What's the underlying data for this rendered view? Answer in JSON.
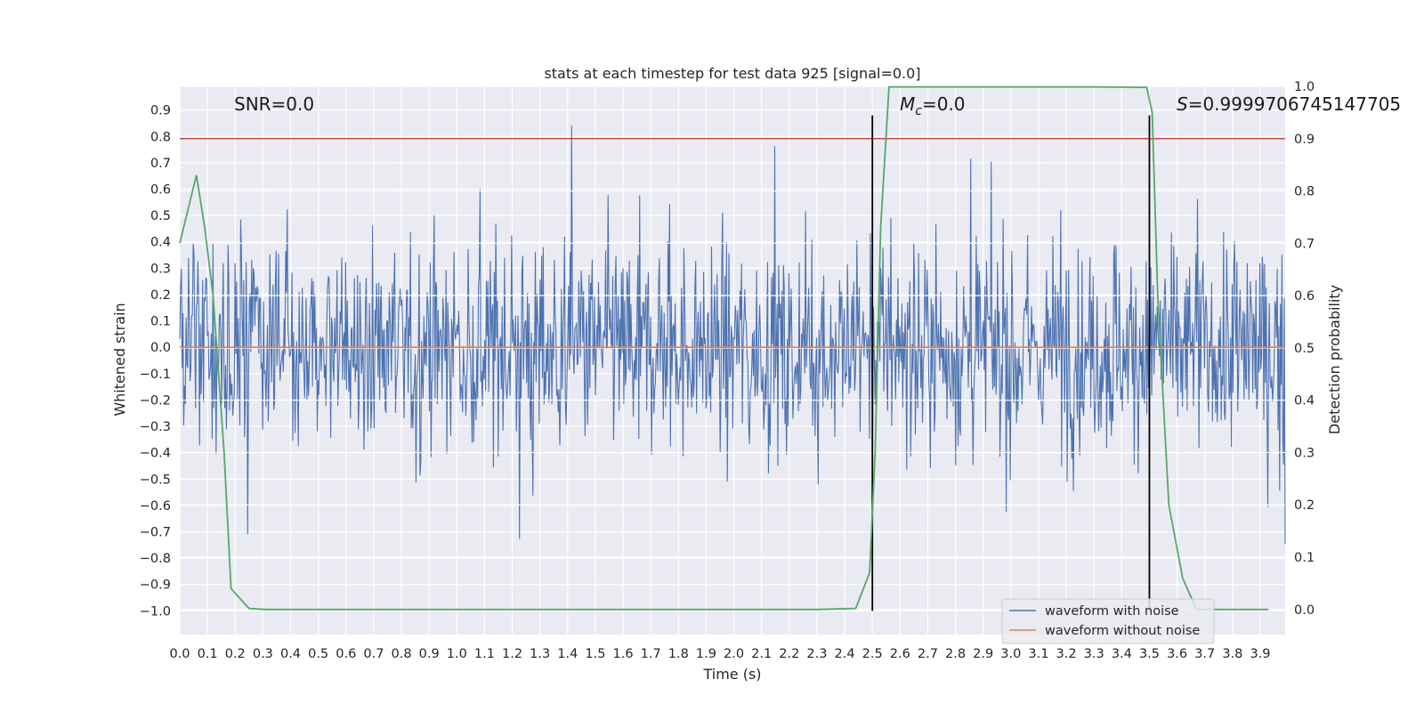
{
  "chart_data": {
    "type": "line",
    "title": "stats at each timestep for test data 925 [signal=0.0]",
    "xlabel": "Time (s)",
    "ylabel": "Whitened strain",
    "y2label": "Detection probability",
    "xlim": [
      0.0,
      3.99
    ],
    "ylim": [
      -1.09,
      0.99
    ],
    "y2lim": [
      -0.048,
      1.0
    ],
    "xticks": [
      0.0,
      0.1,
      0.2,
      0.3,
      0.4,
      0.5,
      0.6,
      0.7,
      0.8,
      0.9,
      1.0,
      1.1,
      1.2,
      1.3,
      1.4,
      1.5,
      1.6,
      1.7,
      1.8,
      1.9,
      2.0,
      2.1,
      2.2,
      2.3,
      2.4,
      2.5,
      2.6,
      2.7,
      2.8,
      2.9,
      3.0,
      3.1,
      3.2,
      3.3,
      3.4,
      3.5,
      3.6,
      3.7,
      3.8,
      3.9
    ],
    "xtick_labels": [
      "0.0",
      "0.1",
      "0.2",
      "0.3",
      "0.4",
      "0.5",
      "0.6",
      "0.7",
      "0.8",
      "0.9",
      "1.0",
      "1.1",
      "1.2",
      "1.3",
      "1.4",
      "1.5",
      "1.6",
      "1.7",
      "1.8",
      "1.9",
      "2.0",
      "2.1",
      "2.2",
      "2.3",
      "2.4",
      "2.5",
      "2.6",
      "2.7",
      "2.8",
      "2.9",
      "3.0",
      "3.1",
      "3.2",
      "3.3",
      "3.4",
      "3.5",
      "3.6",
      "3.7",
      "3.8",
      "3.9"
    ],
    "yticks": [
      0.9,
      0.8,
      0.7,
      0.6,
      0.5,
      0.4,
      0.3,
      0.2,
      0.1,
      0.0,
      -0.1,
      -0.2,
      -0.3,
      -0.4,
      -0.5,
      -0.6,
      -0.7,
      -0.8,
      -0.9,
      -1.0
    ],
    "ytick_labels": [
      "0.9",
      "0.8",
      "0.7",
      "0.6",
      "0.5",
      "0.4",
      "0.3",
      "0.2",
      "0.1",
      "0.0",
      "−0.1",
      "−0.2",
      "−0.3",
      "−0.4",
      "−0.5",
      "−0.6",
      "−0.7",
      "−0.8",
      "−0.9",
      "−1.0"
    ],
    "y2ticks": [
      1.0,
      0.9,
      0.8,
      0.7,
      0.6,
      0.5,
      0.4,
      0.3,
      0.2,
      0.1,
      0.0
    ],
    "y2tick_labels": [
      "1.0",
      "0.9",
      "0.8",
      "0.7",
      "0.6",
      "0.5",
      "0.4",
      "0.3",
      "0.2",
      "0.1",
      "0.0"
    ],
    "grid": true,
    "legend_position": "bottom-right",
    "annotations": {
      "snr": "SNR=0.0",
      "mc_symbol": "M",
      "mc_sub": "c",
      "mc_value": "=0.0",
      "s_symbol": "S",
      "s_value": "=0.9999706745147705"
    },
    "series": [
      {
        "name": "waveform with noise",
        "color": "#4c72b0",
        "axis": "left",
        "style": "dense noise, roughly ±0.3 with spikes to about ±0.9"
      },
      {
        "name": "waveform without noise",
        "color": "#dd8452",
        "axis": "left",
        "values_constant": 0.0
      },
      {
        "color": "#55a868",
        "axis": "right",
        "x": [
          0.0,
          0.06,
          0.09,
          0.12,
          0.16,
          0.185,
          0.25,
          0.31,
          0.5,
          1.0,
          1.5,
          2.0,
          2.3,
          2.44,
          2.49,
          2.51,
          2.53,
          2.56,
          2.6,
          3.0,
          3.3,
          3.49,
          3.51,
          3.53,
          3.57,
          3.62,
          3.67,
          3.8,
          3.93
        ],
        "values": [
          0.7,
          0.83,
          0.73,
          0.6,
          0.3,
          0.04,
          0.002,
          0.0,
          0.0,
          0.0,
          0.0,
          0.0,
          0.0,
          0.002,
          0.07,
          0.3,
          0.73,
          0.999,
          0.999,
          0.999,
          0.999,
          0.998,
          0.95,
          0.6,
          0.2,
          0.06,
          0.0,
          0.0,
          0.0
        ]
      }
    ],
    "hlines": [
      {
        "axis": "right",
        "value": 0.9,
        "color": "#c44e52"
      }
    ],
    "vlines": [
      {
        "x": 2.5,
        "ymin": -1.0,
        "ymax": 0.88,
        "color": "#000000"
      },
      {
        "x": 3.5,
        "ymin": -1.0,
        "ymax": 0.88,
        "color": "#000000"
      }
    ]
  }
}
